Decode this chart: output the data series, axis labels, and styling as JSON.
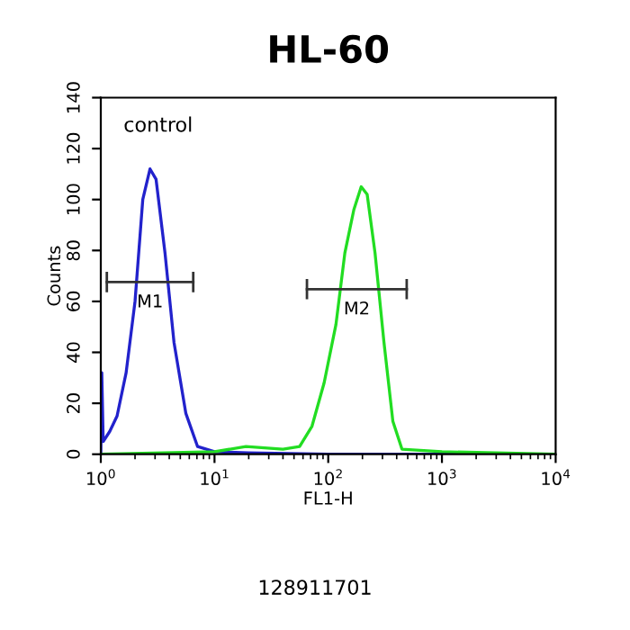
{
  "chart_data": {
    "type": "line",
    "title": "HL-60",
    "xlabel": "FL1-H",
    "ylabel": "Counts",
    "log": "x",
    "xlim": [
      1,
      10000
    ],
    "ylim": [
      0,
      140
    ],
    "xticks": [
      {
        "value": 1,
        "label": "10$^{0}$"
      },
      {
        "value": 10,
        "label": "10$^{1}$"
      },
      {
        "value": 100,
        "label": "10$^{2}$"
      },
      {
        "value": 1000,
        "label": "10$^{3}$"
      },
      {
        "value": 10000,
        "label": "10$^{4}$"
      }
    ],
    "yticks": [
      0,
      20,
      40,
      60,
      80,
      100,
      120,
      140
    ],
    "grid": false,
    "legend": false,
    "marker": "none",
    "line_style": "solid",
    "series": [
      {
        "color": "#2222cc",
        "x": [
          1.0,
          1.02,
          1.05,
          1.2,
          1.39,
          1.67,
          2.0,
          2.34,
          2.71,
          3.06,
          3.67,
          4.4,
          5.6,
          7.1,
          10,
          20,
          100,
          10000
        ],
        "values": [
          0,
          32,
          5,
          9,
          15,
          32,
          60,
          100,
          112,
          108,
          79,
          44,
          16,
          3,
          1,
          0.5,
          0,
          0
        ]
      },
      {
        "color": "#22dd22",
        "x": [
          1.0,
          10,
          18.9,
          40,
          56,
          72,
          92,
          117,
          140,
          168,
          195,
          220,
          258,
          309,
          370,
          445,
          1000,
          10000
        ],
        "values": [
          0,
          1,
          3,
          2,
          3,
          11,
          28,
          51,
          79,
          96,
          105,
          102,
          79,
          44,
          13,
          2,
          1,
          0
        ]
      },
      {
        "name": "M1",
        "color": "#333333",
        "x": [
          1.13,
          6.5
        ],
        "values": [
          67.6,
          67.6
        ]
      },
      {
        "name": "M2",
        "color": "#333333",
        "x": [
          65,
          490
        ],
        "values": [
          64.8,
          64.8
        ]
      }
    ],
    "annotations": [
      "control",
      "128911701"
    ]
  }
}
